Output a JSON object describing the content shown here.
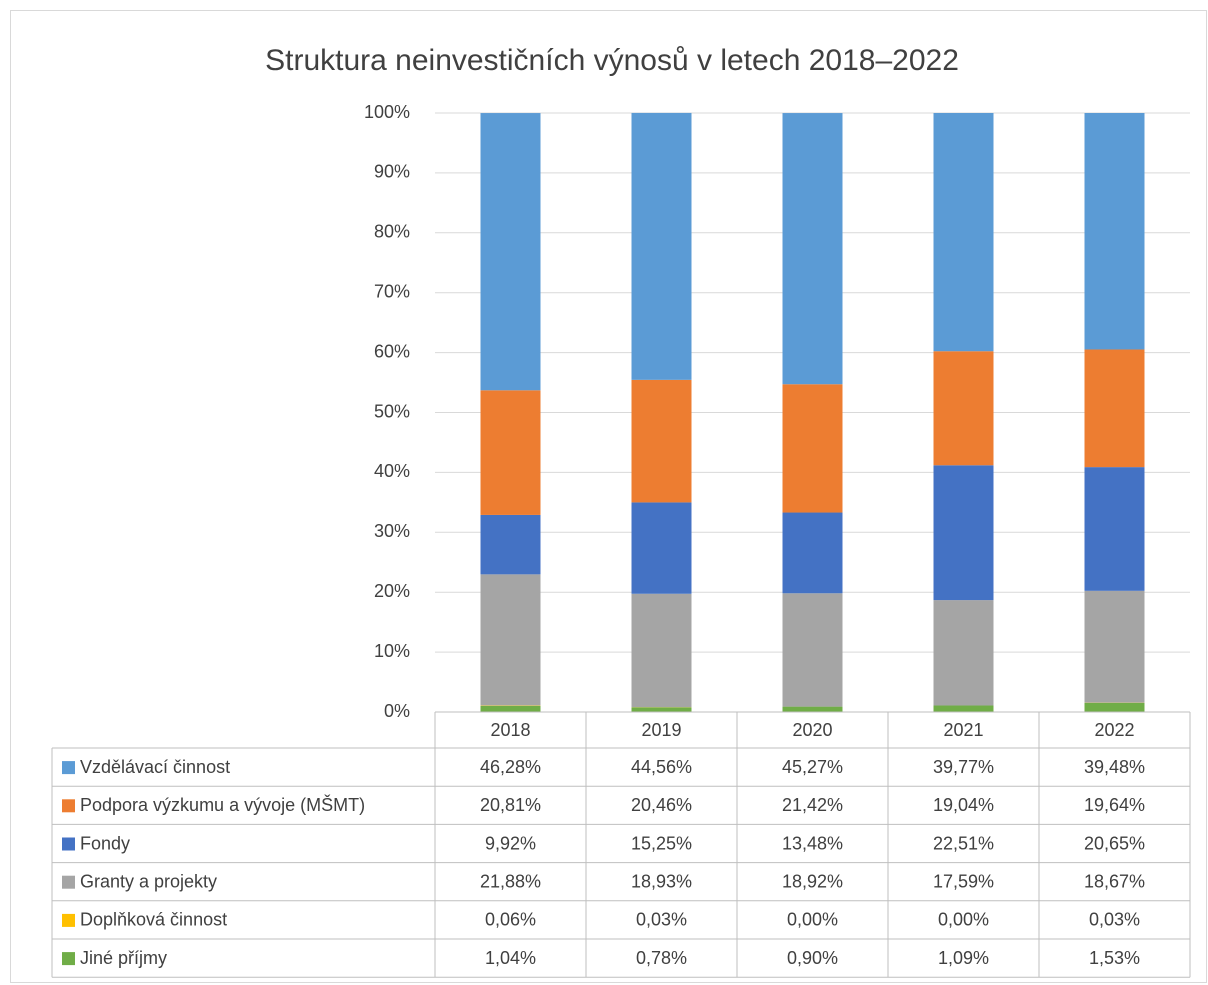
{
  "chart_data": {
    "type": "stacked_bar",
    "title": "Struktura neinvestičních výnosů v letech 2018–2022",
    "categories": [
      "2018",
      "2019",
      "2020",
      "2021",
      "2022"
    ],
    "ylim": [
      0,
      100
    ],
    "yticks": [
      {
        "value": 0,
        "label": "0%"
      },
      {
        "value": 10,
        "label": "10%"
      },
      {
        "value": 20,
        "label": "20%"
      },
      {
        "value": 30,
        "label": "30%"
      },
      {
        "value": 40,
        "label": "40%"
      },
      {
        "value": 50,
        "label": "50%"
      },
      {
        "value": 60,
        "label": "60%"
      },
      {
        "value": 70,
        "label": "70%"
      },
      {
        "value": 80,
        "label": "80%"
      },
      {
        "value": 90,
        "label": "90%"
      },
      {
        "value": 100,
        "label": "100%"
      }
    ],
    "grid": true,
    "series": [
      {
        "name": "Vzdělávací činnost",
        "color": "#5b9bd5",
        "values": [
          46.28,
          44.56,
          45.27,
          39.77,
          39.48
        ],
        "value_labels": [
          "46,28%",
          "44,56%",
          "45,27%",
          "39,77%",
          "39,48%"
        ]
      },
      {
        "name": "Podpora výzkumu a vývoje (MŠMT)",
        "color": "#ed7d31",
        "values": [
          20.81,
          20.46,
          21.42,
          19.04,
          19.64
        ],
        "value_labels": [
          "20,81%",
          "20,46%",
          "21,42%",
          "19,04%",
          "19,64%"
        ]
      },
      {
        "name": "Fondy",
        "color": "#4472c4",
        "values": [
          9.92,
          15.25,
          13.48,
          22.51,
          20.65
        ],
        "value_labels": [
          "9,92%",
          "15,25%",
          "13,48%",
          "22,51%",
          "20,65%"
        ]
      },
      {
        "name": "Granty a projekty",
        "color": "#a5a5a5",
        "values": [
          21.88,
          18.93,
          18.92,
          17.59,
          18.67
        ],
        "value_labels": [
          "21,88%",
          "18,93%",
          "18,92%",
          "17,59%",
          "18,67%"
        ]
      },
      {
        "name": "Doplňková činnost",
        "color": "#ffc000",
        "values": [
          0.06,
          0.03,
          0.0,
          0.0,
          0.03
        ],
        "value_labels": [
          "0,06%",
          "0,03%",
          "0,00%",
          "0,00%",
          "0,03%"
        ]
      },
      {
        "name": "Jiné příjmy",
        "color": "#70ad47",
        "values": [
          1.04,
          0.78,
          0.9,
          1.09,
          1.53
        ],
        "value_labels": [
          "1,04%",
          "0,78%",
          "0,90%",
          "1,09%",
          "1,53%"
        ]
      }
    ]
  }
}
